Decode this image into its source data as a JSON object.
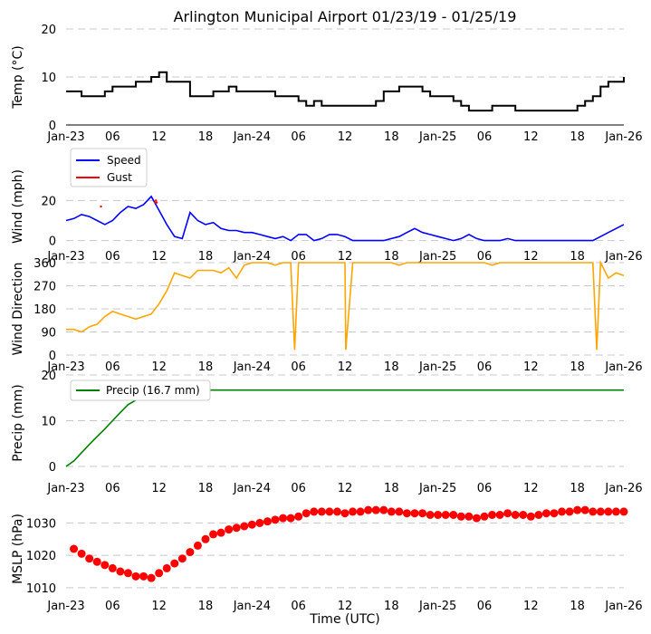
{
  "title": "Arlington Municipal Airport 01/23/19 - 01/25/19",
  "x_axis_label": "Time (UTC)",
  "x_tick_labels": [
    "Jan-23",
    "06",
    "12",
    "18",
    "Jan-24",
    "06",
    "12",
    "18",
    "Jan-25",
    "06",
    "12",
    "18",
    "Jan-26"
  ],
  "colors": {
    "temp": "#000000",
    "speed": "#0000ff",
    "gust": "#ff0000",
    "direction": "#ffa500",
    "precip": "#008000",
    "mslp": "#ff0000"
  },
  "chart_data": [
    {
      "type": "line",
      "name": "temperature",
      "ylabel": "Temp ($^\\circ$C)",
      "ylabel_display": "Temp (°C)",
      "xlim_hours": [
        0,
        72
      ],
      "ylim": [
        0,
        20
      ],
      "yticks": [
        0,
        10,
        20
      ],
      "x_hours": [
        0,
        1,
        2,
        3,
        4,
        5,
        6,
        7,
        8,
        9,
        10,
        11,
        12,
        13,
        14,
        15,
        16,
        17,
        18,
        19,
        20,
        21,
        22,
        23,
        24,
        25,
        26,
        27,
        28,
        29,
        30,
        31,
        32,
        33,
        34,
        35,
        36,
        37,
        38,
        39,
        40,
        41,
        42,
        43,
        44,
        45,
        46,
        47,
        48,
        49,
        50,
        51,
        52,
        53,
        54,
        55,
        56,
        57,
        58,
        59,
        60,
        61,
        62,
        63,
        64,
        65,
        66,
        67,
        68,
        69,
        70,
        71,
        72
      ],
      "values": [
        7,
        7,
        6,
        6,
        6,
        7,
        8,
        8,
        8,
        9,
        9,
        10,
        11,
        9,
        9,
        9,
        6,
        6,
        6,
        7,
        7,
        8,
        7,
        7,
        7,
        7,
        7,
        6,
        6,
        6,
        5,
        4,
        5,
        4,
        4,
        4,
        4,
        4,
        4,
        4,
        5,
        7,
        7,
        8,
        8,
        8,
        7,
        6,
        6,
        6,
        5,
        4,
        3,
        3,
        3,
        4,
        4,
        4,
        3,
        3,
        3,
        3,
        3,
        3,
        3,
        3,
        4,
        5,
        6,
        8,
        9,
        9,
        10
      ]
    },
    {
      "type": "line",
      "name": "wind",
      "ylabel": "Wind (mph)",
      "xlim_hours": [
        0,
        72
      ],
      "ylim": [
        -2,
        36
      ],
      "yticks": [
        0,
        20
      ],
      "legend": [
        "Speed",
        "Gust"
      ],
      "series": [
        {
          "name": "Speed",
          "x_hours": [
            0,
            1,
            2,
            3,
            4,
            5,
            6,
            7,
            8,
            9,
            10,
            11,
            12,
            13,
            14,
            15,
            16,
            17,
            18,
            19,
            20,
            21,
            22,
            23,
            24,
            25,
            26,
            27,
            28,
            29,
            30,
            31,
            32,
            33,
            34,
            35,
            36,
            37,
            38,
            39,
            40,
            41,
            42,
            43,
            44,
            45,
            46,
            47,
            48,
            49,
            50,
            51,
            52,
            53,
            54,
            55,
            56,
            57,
            58,
            59,
            60,
            61,
            62,
            63,
            64,
            65,
            66,
            67,
            68,
            69,
            70,
            71,
            72
          ],
          "values": [
            10,
            11,
            13,
            12,
            10,
            8,
            10,
            14,
            17,
            16,
            18,
            22,
            15,
            8,
            2,
            1,
            14,
            10,
            8,
            9,
            6,
            5,
            5,
            4,
            4,
            3,
            2,
            1,
            2,
            0,
            3,
            3,
            0,
            1,
            3,
            3,
            2,
            0,
            0,
            0,
            0,
            0,
            1,
            2,
            4,
            6,
            4,
            3,
            2,
            1,
            0,
            1,
            3,
            1,
            0,
            0,
            0,
            1,
            0,
            0,
            0,
            0,
            0,
            0,
            0,
            0,
            0,
            0,
            0,
            2,
            4,
            6,
            8
          ]
        },
        {
          "name": "Gust",
          "x_hours": [
            4.5,
            11.5,
            11.6,
            11.7
          ],
          "values": [
            17,
            19,
            20,
            19
          ]
        }
      ]
    },
    {
      "type": "line",
      "name": "wind_direction",
      "ylabel": "Wind Direction",
      "xlim_hours": [
        0,
        72
      ],
      "ylim": [
        0,
        360
      ],
      "yticks": [
        0,
        90,
        180,
        270,
        360
      ],
      "x_hours": [
        0,
        1,
        2,
        3,
        4,
        5,
        6,
        7,
        8,
        9,
        10,
        11,
        12,
        13,
        14,
        15,
        16,
        17,
        18,
        19,
        20,
        21,
        22,
        23,
        24,
        25,
        26,
        27,
        28,
        29,
        29.5,
        30,
        31,
        32,
        33,
        34,
        35,
        36,
        36.1,
        37,
        38,
        39,
        40,
        41,
        42,
        43,
        44,
        45,
        46,
        47,
        48,
        49,
        50,
        51,
        52,
        53,
        54,
        55,
        56,
        57,
        58,
        59,
        60,
        61,
        62,
        63,
        64,
        65,
        66,
        67,
        68,
        68.5,
        69,
        70,
        71,
        72
      ],
      "values": [
        100,
        100,
        90,
        110,
        120,
        150,
        170,
        160,
        150,
        140,
        150,
        160,
        200,
        250,
        320,
        310,
        300,
        330,
        330,
        330,
        320,
        340,
        300,
        350,
        360,
        360,
        360,
        350,
        360,
        360,
        20,
        360,
        360,
        360,
        360,
        360,
        360,
        360,
        20,
        360,
        360,
        360,
        360,
        360,
        360,
        350,
        360,
        360,
        360,
        360,
        360,
        360,
        360,
        360,
        360,
        360,
        360,
        350,
        360,
        360,
        360,
        360,
        360,
        360,
        360,
        360,
        360,
        360,
        360,
        360,
        360,
        20,
        360,
        300,
        320,
        310
      ]
    },
    {
      "type": "line",
      "name": "precipitation",
      "ylabel": "Precip (mm)",
      "xlim_hours": [
        0,
        72
      ],
      "ylim": [
        -1,
        20
      ],
      "yticks": [
        0,
        10,
        20
      ],
      "legend": [
        "Precip (16.7 mm)"
      ],
      "x_hours": [
        0,
        1,
        2,
        3,
        4,
        5,
        6,
        7,
        8,
        9,
        10,
        11,
        12,
        13,
        14,
        15,
        72
      ],
      "values": [
        0,
        1.2,
        3.0,
        4.8,
        6.5,
        8.2,
        10.0,
        11.8,
        13.5,
        14.5,
        15.3,
        15.8,
        16.2,
        16.5,
        16.7,
        16.7,
        16.7
      ]
    },
    {
      "type": "scatter",
      "name": "mslp",
      "ylabel": "MSLP (hPa)",
      "xlim_hours": [
        0,
        72
      ],
      "ylim": [
        1008,
        1036
      ],
      "yticks": [
        1010,
        1020,
        1030
      ],
      "x_hours": [
        1,
        2,
        3,
        4,
        5,
        6,
        7,
        8,
        9,
        10,
        11,
        12,
        13,
        14,
        15,
        16,
        17,
        18,
        19,
        20,
        21,
        22,
        23,
        24,
        25,
        26,
        27,
        28,
        29,
        30,
        31,
        32,
        33,
        34,
        35,
        36,
        37,
        38,
        39,
        40,
        41,
        42,
        43,
        44,
        45,
        46,
        47,
        48,
        49,
        50,
        51,
        52,
        53,
        54,
        55,
        56,
        57,
        58,
        59,
        60,
        61,
        62,
        63,
        64,
        65,
        66,
        67,
        68,
        69,
        70,
        71,
        72
      ],
      "values": [
        1022,
        1020.5,
        1019,
        1018,
        1017,
        1016,
        1015,
        1014.5,
        1013.5,
        1013.5,
        1013,
        1014.5,
        1016,
        1017.5,
        1019,
        1021,
        1023,
        1025,
        1026.5,
        1027,
        1028,
        1028.5,
        1029,
        1029.5,
        1030,
        1030.5,
        1031,
        1031.5,
        1031.5,
        1032,
        1033,
        1033.5,
        1033.5,
        1033.5,
        1033.5,
        1033,
        1033.5,
        1033.5,
        1034,
        1034,
        1034,
        1033.5,
        1033.5,
        1033,
        1033,
        1033,
        1032.5,
        1032.5,
        1032.5,
        1032.5,
        1032,
        1032,
        1031.5,
        1032,
        1032.5,
        1032.5,
        1033,
        1032.5,
        1032.5,
        1032,
        1032.5,
        1033,
        1033,
        1033.5,
        1033.5,
        1034,
        1034,
        1033.5,
        1033.5,
        1033.5,
        1033.5,
        1033.5
      ]
    }
  ]
}
